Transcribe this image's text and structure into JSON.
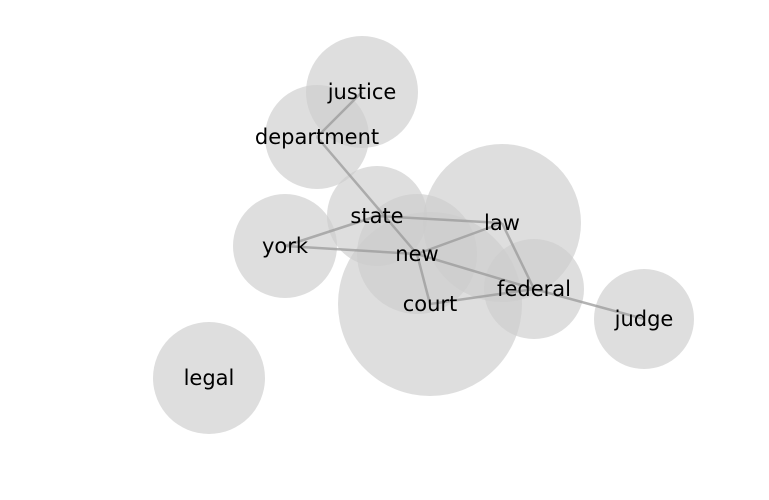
{
  "graph": {
    "nodes": [
      {
        "id": "justice",
        "label": "justice"
      },
      {
        "id": "department",
        "label": "department"
      },
      {
        "id": "state",
        "label": "state"
      },
      {
        "id": "law",
        "label": "law"
      },
      {
        "id": "york",
        "label": "york"
      },
      {
        "id": "new",
        "label": "new"
      },
      {
        "id": "court",
        "label": "court"
      },
      {
        "id": "federal",
        "label": "federal"
      },
      {
        "id": "judge",
        "label": "judge"
      },
      {
        "id": "legal",
        "label": "legal"
      }
    ],
    "edges": [
      {
        "source": "justice",
        "target": "department"
      },
      {
        "source": "department",
        "target": "new"
      },
      {
        "source": "state",
        "target": "law"
      },
      {
        "source": "state",
        "target": "york"
      },
      {
        "source": "york",
        "target": "new"
      },
      {
        "source": "new",
        "target": "law"
      },
      {
        "source": "new",
        "target": "court"
      },
      {
        "source": "new",
        "target": "federal"
      },
      {
        "source": "law",
        "target": "federal"
      },
      {
        "source": "court",
        "target": "federal"
      },
      {
        "source": "federal",
        "target": "judge"
      }
    ]
  }
}
